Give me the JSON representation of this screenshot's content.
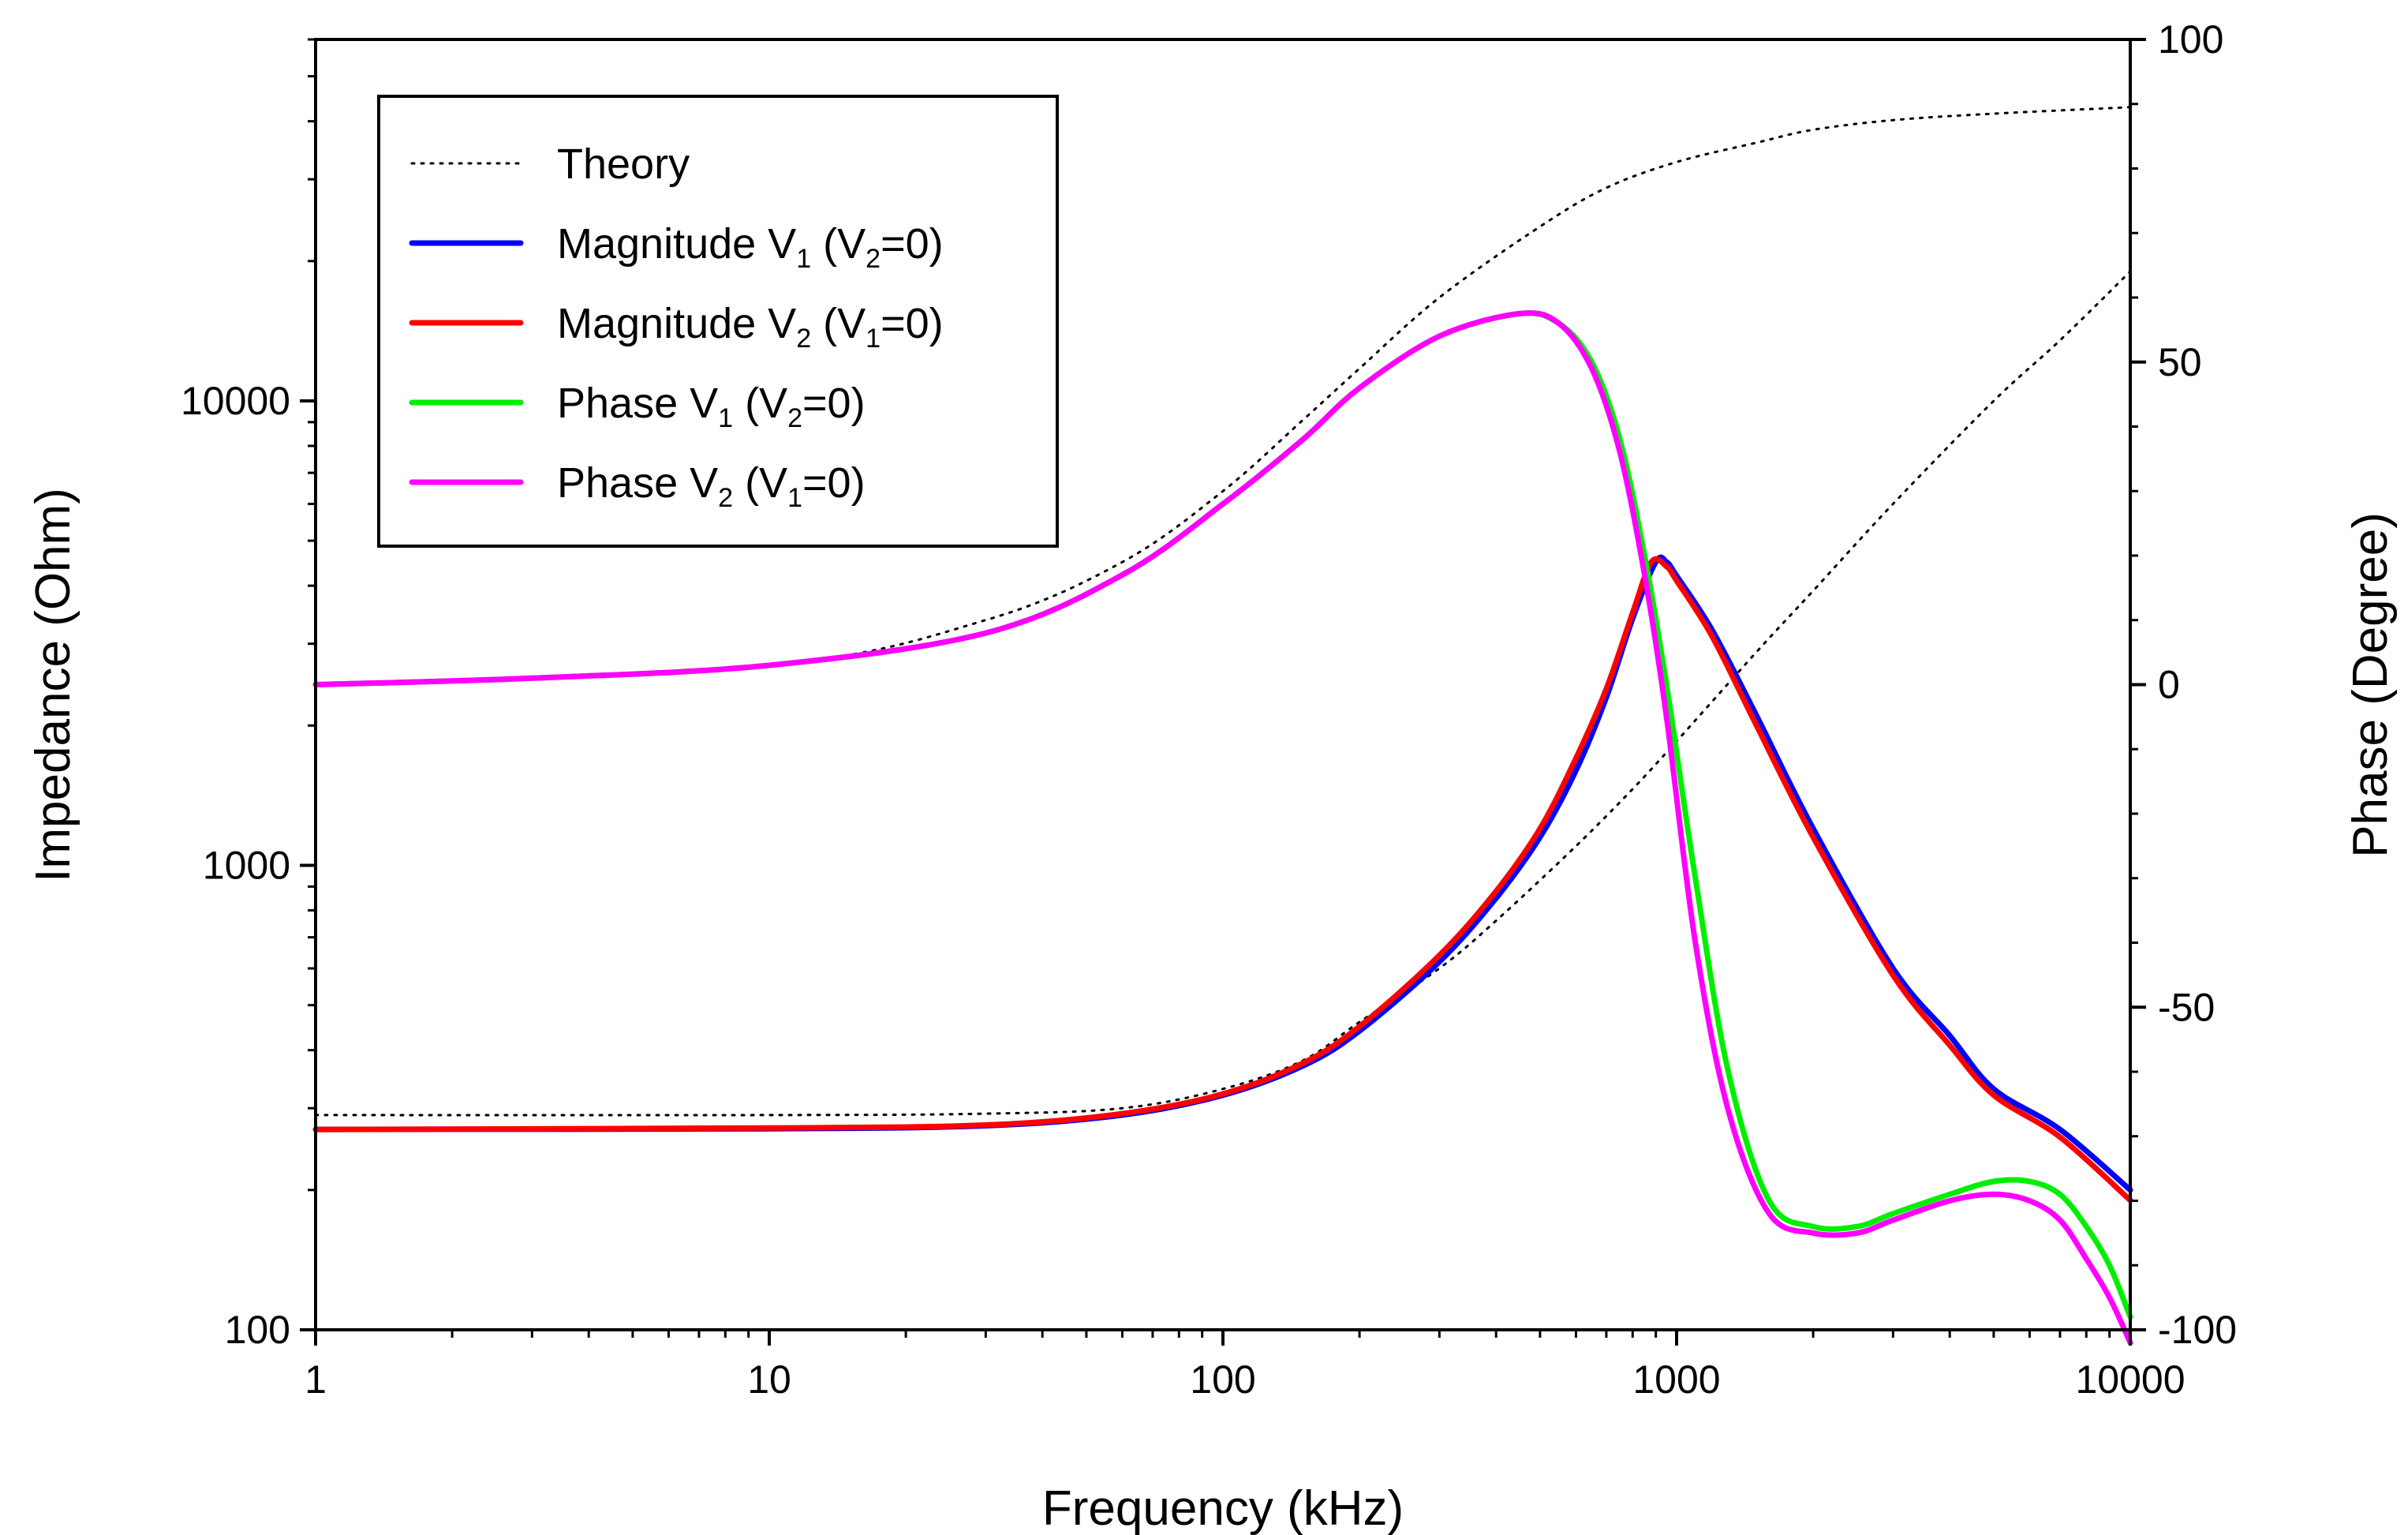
{
  "chart_data": {
    "type": "line",
    "xlabel": "Frequency (kHz)",
    "ylabel": "Impedance (Ohm)",
    "y2label": "Phase (Degree)",
    "xscale": "log",
    "yscale": "log",
    "xlim": [
      1,
      10000
    ],
    "ylim": [
      100,
      60000
    ],
    "y2lim": [
      -100,
      100
    ],
    "xticks": [
      1,
      10,
      100,
      1000,
      10000
    ],
    "xtick_labels": [
      "1",
      "10",
      "100",
      "1000",
      "10000"
    ],
    "yticks": [
      100,
      1000,
      10000
    ],
    "ytick_labels": [
      "100",
      "1000",
      "10000"
    ],
    "y2ticks": [
      -100,
      -50,
      0,
      50,
      100
    ],
    "y2tick_labels": [
      "-100",
      "-50",
      "0",
      "50",
      "100"
    ],
    "grid": false,
    "legend_position": "top-left",
    "legend": [
      {
        "id": "theory",
        "main": "Theory",
        "sub1": "",
        "mid": "",
        "sub2": "",
        "tail": "",
        "color": "#000000",
        "style": "dotted"
      },
      {
        "id": "mag_v1",
        "main": "Magnitude V",
        "sub1": "1",
        "mid": " (V",
        "sub2": "2",
        "tail": "=0)",
        "color": "#0000FF",
        "style": "solid"
      },
      {
        "id": "mag_v2",
        "main": "Magnitude V",
        "sub1": "2",
        "mid": " (V",
        "sub2": "1",
        "tail": "=0)",
        "color": "#FF0000",
        "style": "solid"
      },
      {
        "id": "phase_v1",
        "main": "Phase V",
        "sub1": "1",
        "mid": " (V",
        "sub2": "2",
        "tail": "=0)",
        "color": "#00EE00",
        "style": "solid"
      },
      {
        "id": "phase_v2",
        "main": "Phase V",
        "sub1": "2",
        "mid": " (V",
        "sub2": "1",
        "tail": "=0)",
        "color": "#FF00FF",
        "style": "solid"
      }
    ],
    "series": [
      {
        "name": "Theory magnitude",
        "axis": "left",
        "color": "#000000",
        "style": "dotted",
        "x": [
          1,
          10,
          30,
          60,
          100,
          150,
          200,
          300,
          400,
          600,
          800,
          1000,
          1500,
          2000,
          3000,
          5000,
          7000,
          10000
        ],
        "y": [
          290,
          290,
          292,
          300,
          330,
          380,
          460,
          600,
          760,
          1100,
          1460,
          1850,
          2880,
          3900,
          6000,
          10000,
          13500,
          19000
        ]
      },
      {
        "name": "Theory phase",
        "axis": "right",
        "color": "#000000",
        "style": "dotted",
        "x": [
          1,
          10,
          30,
          60,
          100,
          150,
          200,
          300,
          500,
          700,
          1000,
          1500,
          2000,
          3000,
          5000,
          10000
        ],
        "y": [
          0,
          3,
          10,
          19,
          30,
          41,
          49,
          60,
          71,
          77,
          81,
          84,
          86,
          87.5,
          88.5,
          89.5
        ]
      },
      {
        "name": "Magnitude V1 (V2=0)",
        "axis": "left",
        "color": "#0000FF",
        "style": "solid",
        "x": [
          1,
          10,
          30,
          60,
          100,
          150,
          200,
          300,
          400,
          500,
          600,
          700,
          800,
          900,
          950,
          1000,
          1200,
          1500,
          2000,
          3000,
          4000,
          5000,
          7000,
          10000
        ],
        "y": [
          270,
          271,
          275,
          290,
          320,
          370,
          440,
          620,
          850,
          1150,
          1600,
          2300,
          3400,
          4500,
          4500,
          4200,
          3200,
          2100,
          1200,
          600,
          430,
          330,
          270,
          200
        ]
      },
      {
        "name": "Magnitude V2 (V1=0)",
        "axis": "left",
        "color": "#FF0000",
        "style": "solid",
        "x": [
          1,
          10,
          30,
          60,
          100,
          150,
          200,
          300,
          400,
          500,
          600,
          700,
          800,
          880,
          950,
          1000,
          1200,
          1500,
          2000,
          3000,
          4000,
          5000,
          7000,
          10000
        ],
        "y": [
          270,
          272,
          276,
          292,
          322,
          375,
          450,
          640,
          880,
          1200,
          1700,
          2400,
          3500,
          4500,
          4400,
          4100,
          3100,
          2000,
          1150,
          580,
          410,
          320,
          260,
          190
        ]
      },
      {
        "name": "Phase V1 (V2=0)",
        "axis": "right",
        "color": "#00EE00",
        "style": "solid",
        "x": [
          1,
          3,
          10,
          30,
          60,
          100,
          150,
          200,
          300,
          450,
          550,
          650,
          750,
          850,
          950,
          1100,
          1300,
          1600,
          2000,
          2500,
          3000,
          4000,
          5000,
          6000,
          7000,
          8000,
          9000,
          10000
        ],
        "y": [
          0,
          1,
          3,
          8,
          17,
          28,
          38,
          46,
          54,
          57.5,
          56,
          50,
          38,
          20,
          0,
          -30,
          -60,
          -80,
          -84,
          -84,
          -82,
          -79,
          -77,
          -77,
          -79,
          -84,
          -90,
          -98
        ]
      },
      {
        "name": "Phase V2 (V1=0)",
        "axis": "right",
        "color": "#FF00FF",
        "style": "solid",
        "x": [
          1,
          3,
          10,
          30,
          60,
          100,
          150,
          200,
          300,
          450,
          550,
          650,
          750,
          850,
          950,
          1100,
          1300,
          1600,
          2000,
          2500,
          3000,
          4000,
          5000,
          6000,
          7000,
          8000,
          9000,
          10000
        ],
        "y": [
          0,
          1,
          3,
          8,
          17,
          28,
          38,
          46,
          54,
          57.5,
          56,
          49,
          36,
          17,
          -5,
          -40,
          -66,
          -82,
          -85,
          -85,
          -83,
          -80,
          -79,
          -80,
          -83,
          -89,
          -95,
          -102
        ]
      }
    ]
  }
}
